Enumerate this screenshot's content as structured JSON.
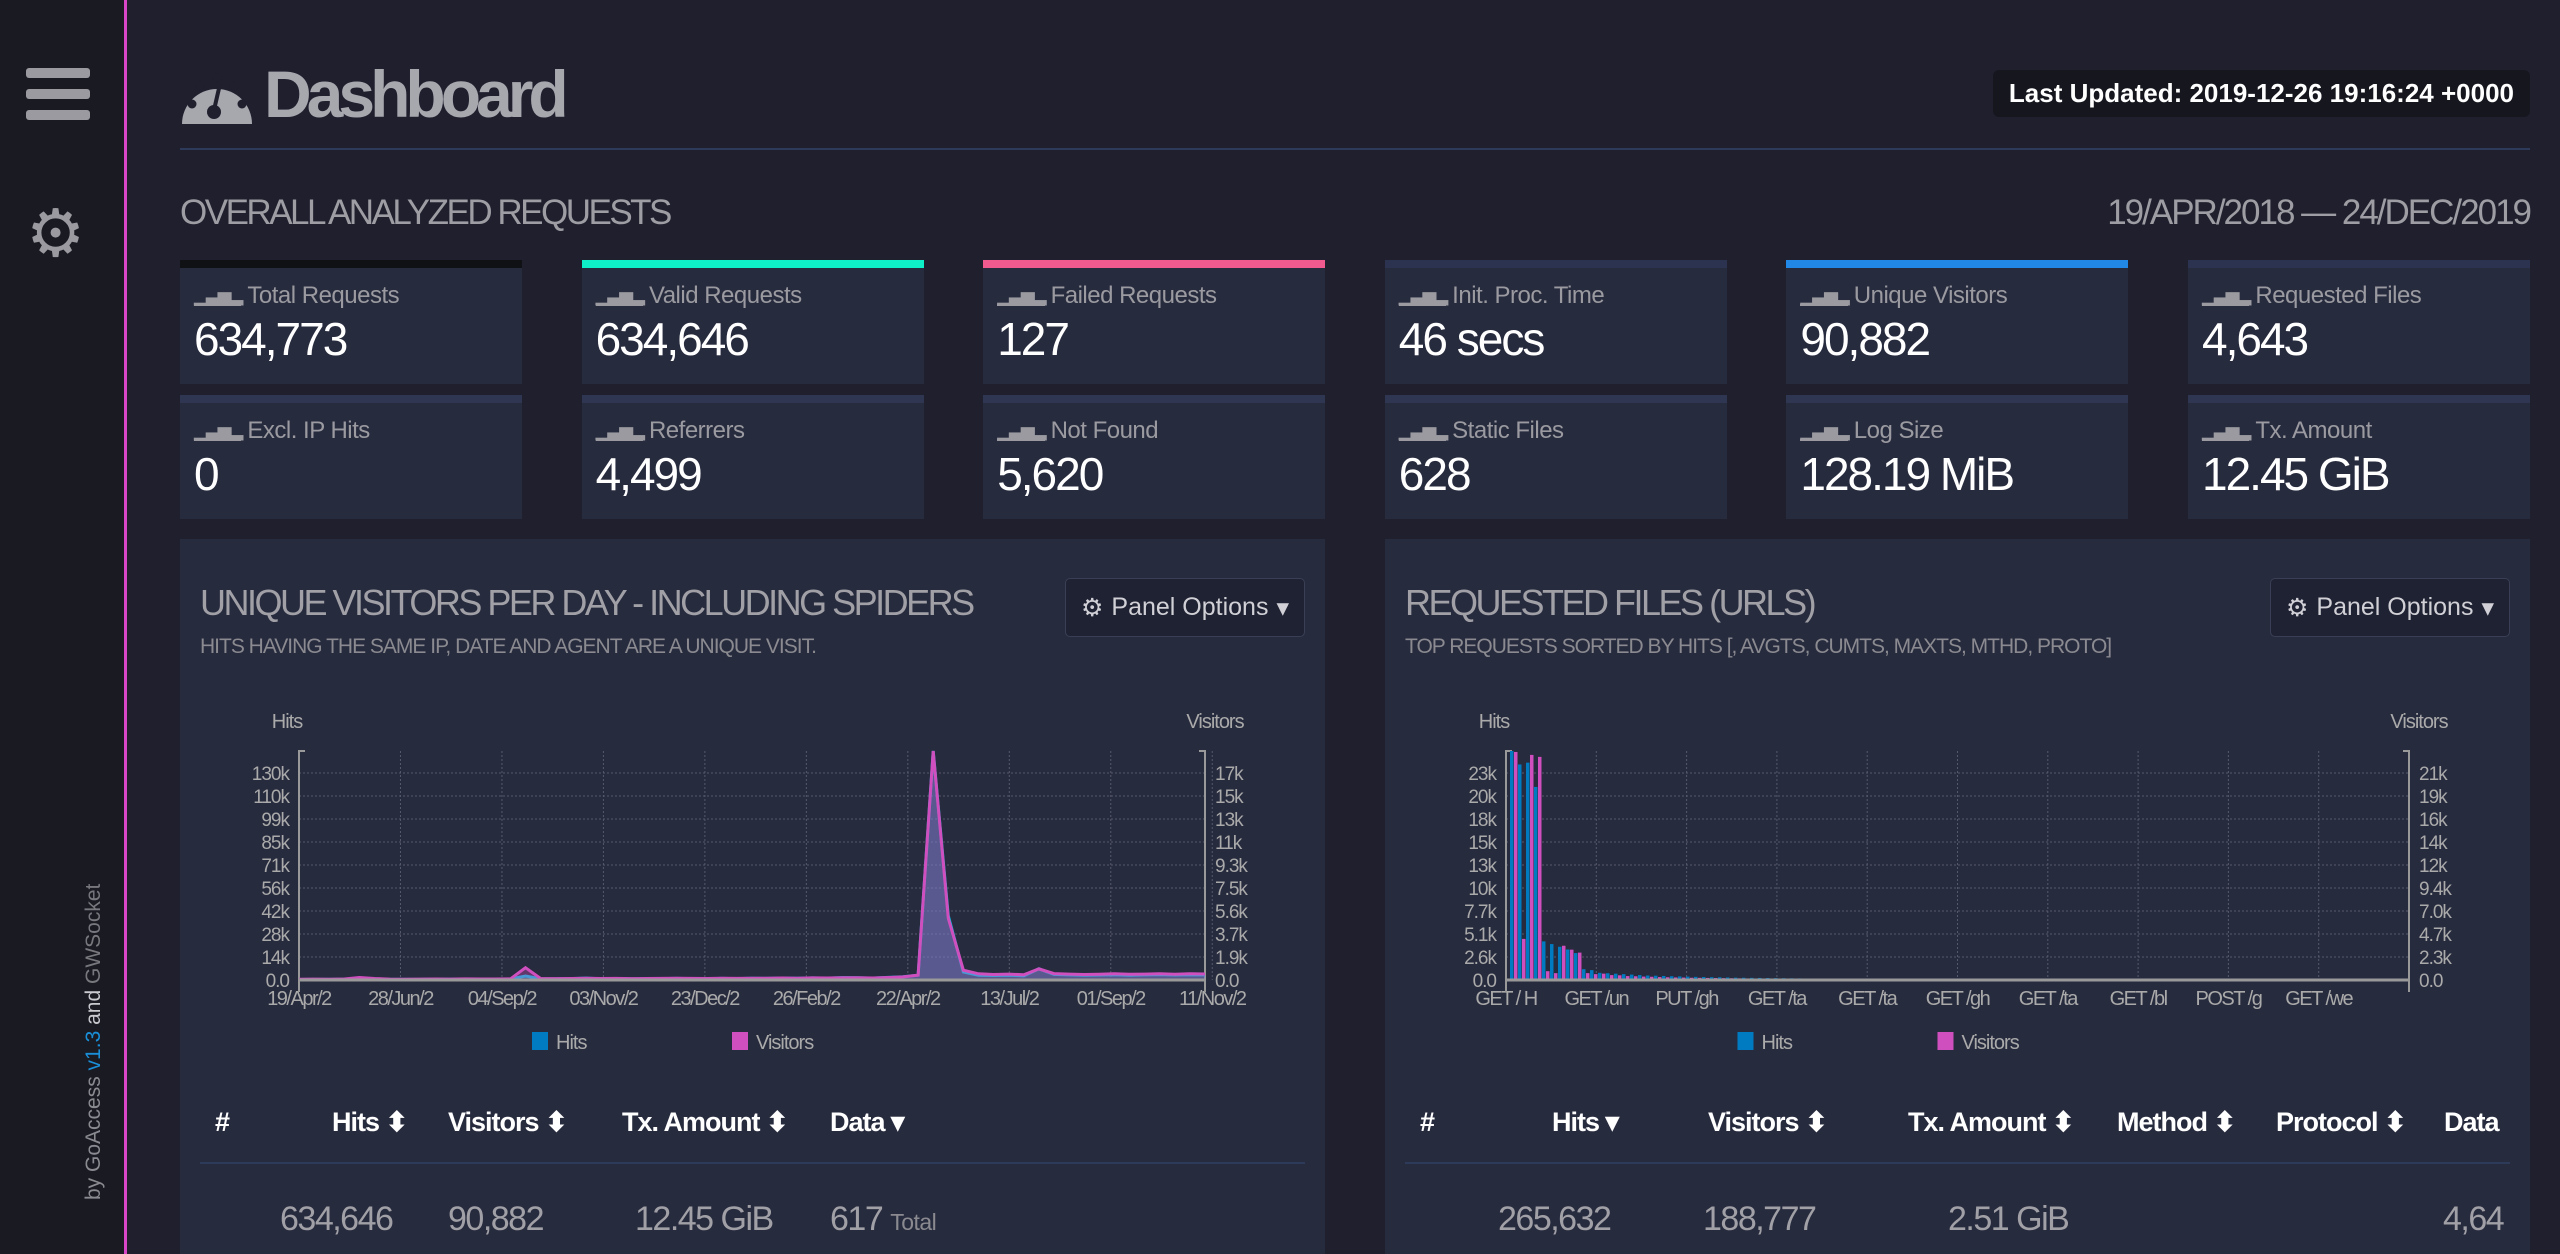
{
  "sidebar": {
    "credit_by": "by GoAccess",
    "version": "v1.3",
    "credit_and": "and",
    "credit_gw": "GWSocket",
    "menu_icon": "hamburger-icon",
    "settings_icon": "gear-icon"
  },
  "header": {
    "title": "Dashboard",
    "last_updated": "Last Updated: 2019-12-26 19:16:24 +0000"
  },
  "overall": {
    "title": "OVERALL ANALYZED REQUESTS",
    "range": "19/APR/2018 — 24/DEC/2019",
    "cards": [
      {
        "label": "Total Requests",
        "value": "634,773",
        "color": "#0f1114"
      },
      {
        "label": "Valid Requests",
        "value": "634,646",
        "color": "#0ef0c8"
      },
      {
        "label": "Failed Requests",
        "value": "127",
        "color": "#f05a8e"
      },
      {
        "label": "Init. Proc. Time",
        "value": "46 secs",
        "color": "#2b3350"
      },
      {
        "label": "Unique Visitors",
        "value": "90,882",
        "color": "#2188e8"
      },
      {
        "label": "Requested Files",
        "value": "4,643",
        "color": "#2b3350"
      },
      {
        "label": "Excl. IP Hits",
        "value": "0",
        "color": "#2e3652"
      },
      {
        "label": "Referrers",
        "value": "4,499",
        "color": "#2e3652"
      },
      {
        "label": "Not Found",
        "value": "5,620",
        "color": "#2e3652"
      },
      {
        "label": "Static Files",
        "value": "628",
        "color": "#2e3652"
      },
      {
        "label": "Log Size",
        "value": "128.19 MiB",
        "color": "#2e3652"
      },
      {
        "label": "Tx. Amount",
        "value": "12.45 GiB",
        "color": "#2e3652"
      }
    ]
  },
  "panels": [
    {
      "title": "UNIQUE VISITORS PER DAY - INCLUDING SPIDERS",
      "subtitle": "HITS HAVING THE SAME IP, DATE AND AGENT ARE A UNIQUE VISIT.",
      "options_label": "Panel Options",
      "columns": [
        "#",
        "Hits",
        "Visitors",
        "Tx. Amount",
        "Data"
      ],
      "totals": {
        "hits": "634,646",
        "visitors": "90,882",
        "tx": "12.45 GiB",
        "data": "617",
        "data_suffix": "Total"
      }
    },
    {
      "title": "REQUESTED FILES (URLS)",
      "subtitle": "TOP REQUESTS SORTED BY HITS [, AVGTS, CUMTS, MAXTS, MTHD, PROTO]",
      "options_label": "Panel Options",
      "columns": [
        "#",
        "Hits",
        "Visitors",
        "Tx. Amount",
        "Method",
        "Protocol",
        "Data"
      ],
      "totals": {
        "hits": "265,632",
        "visitors": "188,777",
        "tx": "2.51 GiB",
        "data": "4,64"
      }
    }
  ],
  "chart_data": [
    {
      "type": "line",
      "ylabel": "Hits",
      "y2label": "Visitors",
      "grid": true,
      "legend": "bottom",
      "ylim": [
        0,
        143000
      ],
      "y2lim": [
        0,
        18600
      ],
      "y_ticks": [
        "0.0",
        "14k",
        "28k",
        "42k",
        "56k",
        "71k",
        "85k",
        "99k",
        "110k",
        "130k"
      ],
      "y2_ticks": [
        "0.0",
        "1.9k",
        "3.7k",
        "5.6k",
        "7.5k",
        "9.3k",
        "11k",
        "13k",
        "15k",
        "17k"
      ],
      "x_ticks": [
        "19/Apr/2",
        "28/Jun/2",
        "04/Sep/2",
        "03/Nov/2",
        "23/Dec/2",
        "26/Feb/2",
        "22/Apr/2",
        "13/Jul/2",
        "01/Sep/2",
        "11/Nov/2"
      ],
      "series": [
        {
          "name": "Hits",
          "color": "#00c0e0",
          "legend_color": "#007bc2",
          "axis": "left",
          "values": [
            300,
            400,
            350,
            500,
            800,
            700,
            400,
            350,
            400,
            500,
            450,
            600,
            500,
            400,
            600,
            2500,
            800,
            700,
            900,
            1200,
            800,
            900,
            700,
            800,
            900,
            1000,
            900,
            800,
            1000,
            900,
            1100,
            1000,
            1200,
            1100,
            1300,
            1200,
            1500,
            1400,
            1200,
            1600,
            2000,
            3000,
            143000,
            40000,
            5000,
            3000,
            2800,
            3000,
            2600,
            7000,
            3500,
            3200,
            3000,
            3100,
            3300,
            3000,
            3200,
            3400,
            3100,
            3300,
            3200
          ]
        },
        {
          "name": "Visitors",
          "color": "#d04fbf",
          "legend_color": "#d04fbf",
          "axis": "right",
          "values": [
            60,
            70,
            65,
            80,
            200,
            120,
            70,
            60,
            70,
            80,
            75,
            90,
            85,
            80,
            90,
            1000,
            120,
            110,
            120,
            150,
            120,
            130,
            110,
            120,
            130,
            140,
            130,
            120,
            140,
            130,
            150,
            140,
            160,
            150,
            170,
            160,
            190,
            180,
            160,
            200,
            250,
            400,
            18600,
            5000,
            800,
            500,
            450,
            480,
            420,
            900,
            520,
            480,
            450,
            470,
            500,
            460,
            480,
            510,
            470,
            500,
            490
          ]
        }
      ]
    },
    {
      "type": "bar",
      "ylabel": "Hits",
      "y2label": "Visitors",
      "grid": true,
      "legend": "bottom",
      "ylim": [
        0,
        25500
      ],
      "y2lim": [
        0,
        23400
      ],
      "y_ticks": [
        "0.0",
        "2.6k",
        "5.1k",
        "7.7k",
        "10k",
        "13k",
        "15k",
        "18k",
        "20k",
        "23k"
      ],
      "y2_ticks": [
        "0.0",
        "2.3k",
        "4.7k",
        "7.0k",
        "9.4k",
        "12k",
        "14k",
        "16k",
        "19k",
        "21k"
      ],
      "x_ticks": [
        "GET / H",
        "GET /un",
        "PUT /gh",
        "GET /ta",
        "GET /ta",
        "GET /gh",
        "GET /ta",
        "GET /bl",
        "POST /g",
        "GET /we"
      ],
      "series": [
        {
          "name": "Hits",
          "color": "#007bc2",
          "values": [
            25500,
            24000,
            24200,
            21500,
            4300,
            4000,
            3700,
            3400,
            3000,
            1200,
            1100,
            800,
            750,
            700,
            650,
            600,
            550,
            500,
            480,
            450,
            420,
            400,
            380,
            350,
            330,
            310,
            300,
            280,
            260,
            250,
            240,
            230,
            220,
            210,
            200,
            190,
            180,
            170,
            160,
            150,
            145,
            140,
            135,
            130,
            125,
            120,
            115,
            110,
            105,
            100,
            95,
            90,
            85,
            80,
            75,
            70,
            65,
            60,
            55,
            50,
            45,
            40,
            35,
            30,
            25,
            20,
            15,
            10,
            5,
            2
          ]
        },
        {
          "name": "Visitors",
          "color": "#d04fbf",
          "values": [
            23300,
            4200,
            23000,
            22800,
            900,
            700,
            3500,
            3100,
            2800,
            700,
            600,
            650,
            500,
            480,
            400,
            380,
            350,
            330,
            300,
            280,
            260,
            250,
            230,
            220,
            210,
            200,
            190,
            180,
            170,
            160,
            150,
            145,
            140,
            135,
            130,
            125,
            120,
            115,
            110,
            105,
            100,
            95,
            90,
            85,
            80,
            75,
            70,
            65,
            60,
            55,
            50,
            45,
            40,
            35,
            30,
            28,
            26,
            24,
            22,
            20,
            18,
            16,
            14,
            12,
            10,
            8,
            6,
            4,
            2,
            1
          ]
        }
      ]
    }
  ]
}
